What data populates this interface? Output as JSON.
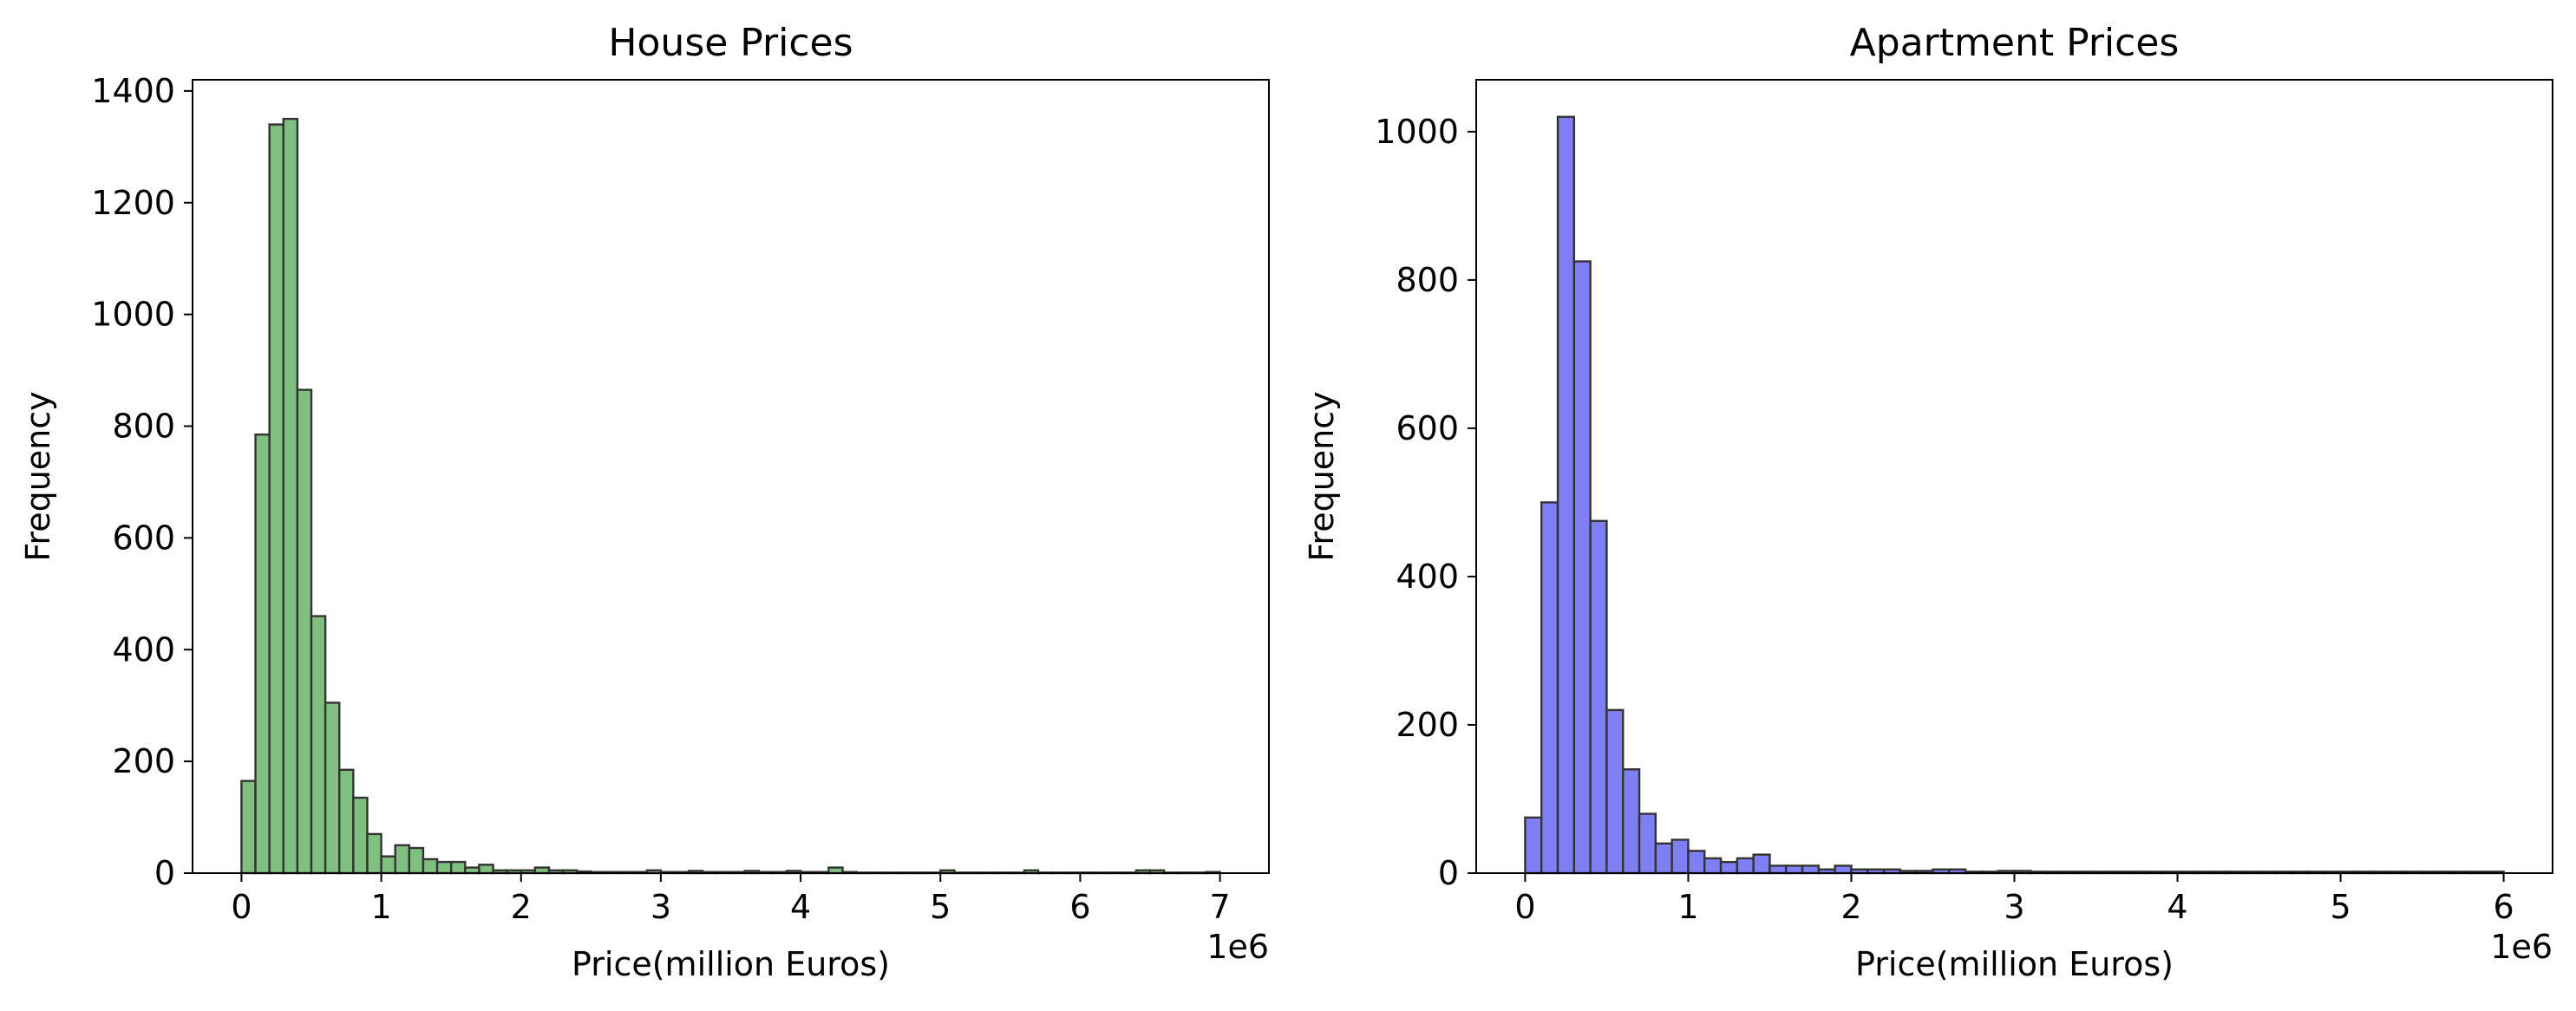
{
  "chart_data": [
    {
      "type": "bar",
      "title": "House Prices",
      "xlabel": "Price(million Euros)",
      "ylabel": "Frequency",
      "x_offset_label": "1e6",
      "xlim": [
        -0.35,
        7.35
      ],
      "ylim": [
        0,
        1420
      ],
      "xticks": [
        0,
        1,
        2,
        3,
        4,
        5,
        6,
        7
      ],
      "yticks": [
        0,
        200,
        400,
        600,
        800,
        1000,
        1200,
        1400
      ],
      "bin_start": 0.0,
      "bin_width": 0.1,
      "color": "#7fbf7f",
      "edge_color": "#333333",
      "grid": false,
      "values": [
        165,
        785,
        1340,
        1350,
        865,
        460,
        305,
        185,
        135,
        70,
        30,
        50,
        45,
        25,
        20,
        20,
        10,
        15,
        5,
        5,
        5,
        10,
        5,
        5,
        3,
        2,
        2,
        2,
        2,
        5,
        2,
        2,
        4,
        2,
        2,
        2,
        4,
        2,
        2,
        4,
        2,
        2,
        10,
        2,
        1,
        1,
        1,
        1,
        1,
        1,
        5,
        1,
        1,
        1,
        1,
        1,
        5,
        1,
        1,
        1,
        1,
        1,
        1,
        1,
        5,
        5,
        1,
        1,
        1,
        2
      ]
    },
    {
      "type": "bar",
      "title": "Apartment Prices",
      "xlabel": "Price(million Euros)",
      "ylabel": "Frequency",
      "x_offset_label": "1e6",
      "xlim": [
        -0.3,
        6.3
      ],
      "ylim": [
        0,
        1070
      ],
      "xticks": [
        0,
        1,
        2,
        3,
        4,
        5,
        6
      ],
      "yticks": [
        0,
        200,
        400,
        600,
        800,
        1000
      ],
      "bin_start": 0.0,
      "bin_width": 0.1,
      "color": "#7f7ff4",
      "edge_color": "#333333",
      "grid": false,
      "values": [
        75,
        500,
        1020,
        825,
        475,
        220,
        140,
        80,
        40,
        45,
        30,
        20,
        15,
        20,
        25,
        10,
        10,
        10,
        5,
        10,
        5,
        5,
        5,
        3,
        3,
        5,
        5,
        2,
        2,
        3,
        3,
        2,
        2,
        2,
        2,
        2,
        2,
        2,
        2,
        2,
        2,
        2,
        2,
        2,
        2,
        2,
        2,
        2,
        2,
        2,
        2,
        2,
        2,
        2,
        2,
        2,
        2,
        2,
        2,
        2
      ]
    }
  ]
}
